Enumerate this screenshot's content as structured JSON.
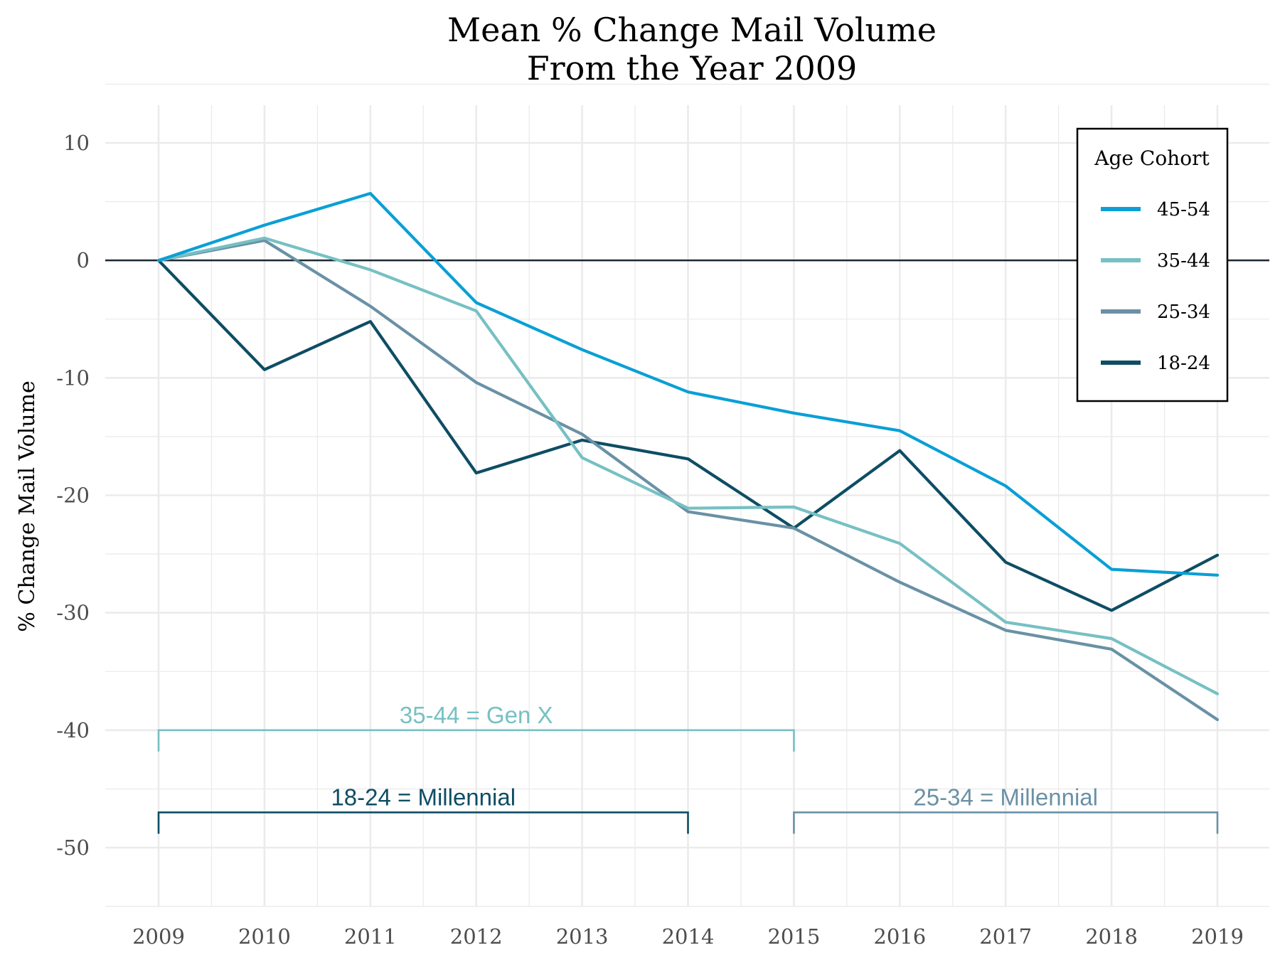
{
  "chart_data": {
    "type": "line",
    "title": [
      "Mean % Change Mail Volume",
      "From the Year 2009"
    ],
    "xlabel": "",
    "ylabel": "% Change Mail Volume",
    "x": [
      2009,
      2010,
      2011,
      2012,
      2013,
      2014,
      2015,
      2016,
      2017,
      2018,
      2019
    ],
    "xlim": [
      2008.5,
      2019.5
    ],
    "ylim": [
      -55,
      13
    ],
    "yticks": [
      10,
      0,
      -10,
      -20,
      -30,
      -40,
      -50
    ],
    "grid": true,
    "zero_line": true,
    "legend": {
      "title": "Age Cohort",
      "position": "top-right",
      "entries": [
        "45-54",
        "35-44",
        "25-34",
        "18-24"
      ]
    },
    "series": [
      {
        "name": "45-54",
        "color": "#0a9fd6",
        "values": [
          0,
          3,
          5.7,
          -3.6,
          -7.6,
          -11.2,
          -13,
          -14.5,
          -19.2,
          -26.3,
          -26.8
        ]
      },
      {
        "name": "35-44",
        "color": "#77c0c3",
        "values": [
          0,
          1.9,
          -0.8,
          -4.3,
          -16.8,
          -21.1,
          -21,
          -24.1,
          -30.8,
          -32.2,
          -36.9
        ]
      },
      {
        "name": "25-34",
        "color": "#6a91a5",
        "values": [
          0,
          1.7,
          -3.9,
          -10.4,
          -14.8,
          -21.4,
          -22.8,
          -27.4,
          -31.5,
          -33.1,
          -39.1
        ]
      },
      {
        "name": "18-24",
        "color": "#0e4d64",
        "values": [
          0,
          -9.3,
          -5.2,
          -18.1,
          -15.3,
          -16.9,
          -22.8,
          -16.2,
          -25.7,
          -29.8,
          -25.1
        ]
      }
    ],
    "annotations": [
      {
        "text": "35-44 = Gen X",
        "x_start": 2009,
        "x_end": 2015,
        "y": -40,
        "color": "#77c0c3"
      },
      {
        "text": "18-24 = Millennial",
        "x_start": 2009,
        "x_end": 2014,
        "y": -47,
        "color": "#0e4d64"
      },
      {
        "text": "25-34 = Millennial",
        "x_start": 2015,
        "x_end": 2019,
        "y": -47,
        "color": "#6a91a5"
      }
    ]
  }
}
